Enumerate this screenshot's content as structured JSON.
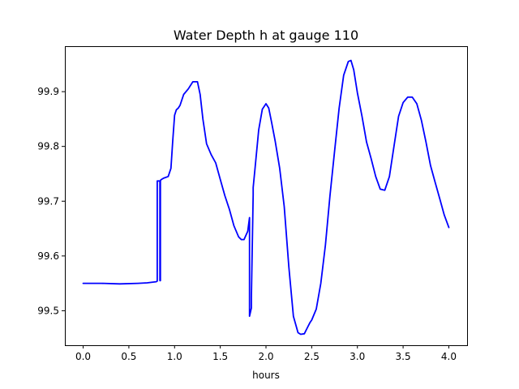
{
  "chart_data": {
    "type": "line",
    "title": "Water Depth h at gauge 110",
    "xlabel": "hours",
    "ylabel": "",
    "xlim": [
      -0.2,
      4.2
    ],
    "ylim": [
      99.437,
      99.983
    ],
    "grid": false,
    "x_ticks": [
      0.0,
      0.5,
      1.0,
      1.5,
      2.0,
      2.5,
      3.0,
      3.5,
      4.0
    ],
    "x_tick_labels": [
      "0.0",
      "0.5",
      "1.0",
      "1.5",
      "2.0",
      "2.5",
      "3.0",
      "3.5",
      "4.0"
    ],
    "y_ticks": [
      99.5,
      99.6,
      99.7,
      99.8,
      99.9
    ],
    "y_tick_labels": [
      "99.5",
      "99.6",
      "99.7",
      "99.8",
      "99.9"
    ],
    "colors": {
      "line": "#0000ff"
    },
    "series": [
      {
        "x": [
          0.0,
          0.2,
          0.4,
          0.6,
          0.7,
          0.8,
          0.81,
          0.81,
          0.84,
          0.84,
          0.845,
          0.845,
          0.85,
          0.88,
          0.93,
          0.96,
          0.98,
          1.0,
          1.02,
          1.04,
          1.06,
          1.1,
          1.15,
          1.2,
          1.25,
          1.28,
          1.31,
          1.35,
          1.4,
          1.45,
          1.5,
          1.55,
          1.6,
          1.65,
          1.7,
          1.73,
          1.76,
          1.8,
          1.82,
          1.82,
          1.84,
          1.84,
          1.86,
          1.86,
          1.88,
          1.92,
          1.96,
          2.0,
          2.03,
          2.06,
          2.1,
          2.15,
          2.2,
          2.25,
          2.3,
          2.35,
          2.38,
          2.42,
          2.45,
          2.48,
          2.5,
          2.55,
          2.6,
          2.65,
          2.7,
          2.75,
          2.8,
          2.85,
          2.9,
          2.93,
          2.96,
          3.0,
          3.05,
          3.1,
          3.15,
          3.2,
          3.25,
          3.3,
          3.35,
          3.4,
          3.45,
          3.5,
          3.55,
          3.6,
          3.65,
          3.7,
          3.75,
          3.8,
          3.85,
          3.9,
          3.95,
          4.0
        ],
        "y": [
          99.55,
          99.55,
          99.549,
          99.55,
          99.551,
          99.553,
          99.554,
          99.737,
          99.737,
          99.555,
          99.555,
          99.737,
          99.739,
          99.742,
          99.745,
          99.76,
          99.81,
          99.857,
          99.867,
          99.87,
          99.875,
          99.895,
          99.905,
          99.918,
          99.918,
          99.895,
          99.85,
          99.805,
          99.785,
          99.77,
          99.74,
          99.71,
          99.685,
          99.655,
          99.635,
          99.63,
          99.63,
          99.645,
          99.67,
          99.49,
          99.505,
          99.525,
          99.712,
          99.725,
          99.76,
          99.83,
          99.868,
          99.878,
          99.87,
          99.845,
          99.81,
          99.76,
          99.69,
          99.58,
          99.49,
          99.46,
          99.457,
          99.458,
          99.468,
          99.478,
          99.483,
          99.503,
          99.55,
          99.62,
          99.71,
          99.79,
          99.87,
          99.93,
          99.955,
          99.957,
          99.94,
          99.898,
          99.855,
          99.808,
          99.778,
          99.745,
          99.722,
          99.72,
          99.745,
          99.8,
          99.855,
          99.88,
          99.89,
          99.89,
          99.878,
          99.848,
          99.808,
          99.765,
          99.735,
          99.705,
          99.675,
          99.652
        ]
      }
    ]
  }
}
